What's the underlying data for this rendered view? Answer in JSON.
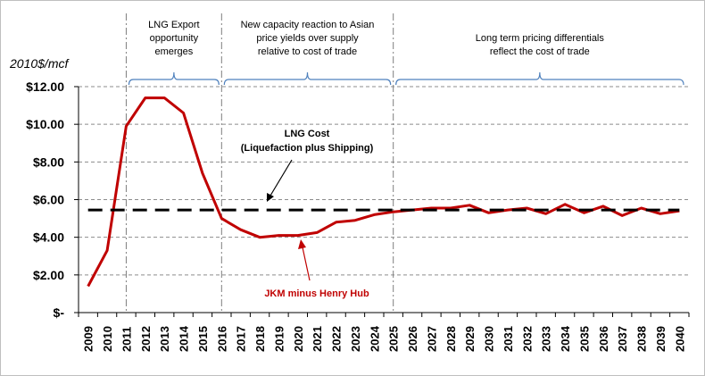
{
  "chart_data": {
    "type": "line",
    "ylabel": "2010$/mcf",
    "ylim": [
      0,
      12
    ],
    "yticks": [
      0,
      2,
      4,
      6,
      8,
      10,
      12
    ],
    "ytick_labels": [
      "$-",
      "$2.00",
      "$4.00",
      "$6.00",
      "$8.00",
      "$10.00",
      "$12.00"
    ],
    "grid": "horizontal dashed",
    "x": [
      "2009",
      "2010",
      "2011",
      "2012",
      "2013",
      "2014",
      "2015",
      "2016",
      "2017",
      "2018",
      "2019",
      "2020",
      "2021",
      "2022",
      "2023",
      "2024",
      "2025",
      "2026",
      "2027",
      "2028",
      "2029",
      "2030",
      "2031",
      "2032",
      "2033",
      "2034",
      "2035",
      "2036",
      "2037",
      "2038",
      "2039",
      "2040"
    ],
    "series": [
      {
        "name": "JKM minus Henry Hub",
        "color": "#c00000",
        "values": [
          1.4,
          3.3,
          9.9,
          11.4,
          11.4,
          10.6,
          7.4,
          5.0,
          4.4,
          4.0,
          4.1,
          4.1,
          4.25,
          4.8,
          4.9,
          5.2,
          5.35,
          5.45,
          5.55,
          5.55,
          5.7,
          5.3,
          5.45,
          5.55,
          5.25,
          5.75,
          5.3,
          5.65,
          5.15,
          5.55,
          5.25,
          5.4
        ]
      },
      {
        "name": "LNG Cost (Liquefaction plus Shipping)",
        "color": "#000000",
        "style": "dashed",
        "values": [
          5.45,
          5.45,
          5.45,
          5.45,
          5.45,
          5.45,
          5.45,
          5.45,
          5.45,
          5.45,
          5.45,
          5.45,
          5.45,
          5.45,
          5.45,
          5.45,
          5.45,
          5.45,
          5.45,
          5.45,
          5.45,
          5.45,
          5.45,
          5.45,
          5.45,
          5.45,
          5.45,
          5.45,
          5.45,
          5.45,
          5.45,
          5.45
        ]
      }
    ],
    "phase_boundaries": [
      "2011",
      "2016",
      "2025"
    ],
    "annotations": {
      "phase1": [
        "LNG  Export",
        "opportunity",
        "emerges"
      ],
      "phase2": [
        "New  capacity reaction to Asian",
        "price yields over supply",
        "relative to cost of trade"
      ],
      "phase3": [
        "Long term pricing differentials",
        "reflect the cost of trade"
      ],
      "lng_label": [
        "LNG Cost",
        "(Liquefaction  plus  Shipping)"
      ],
      "jkm_label": "JKM minus  Henry Hub"
    }
  }
}
